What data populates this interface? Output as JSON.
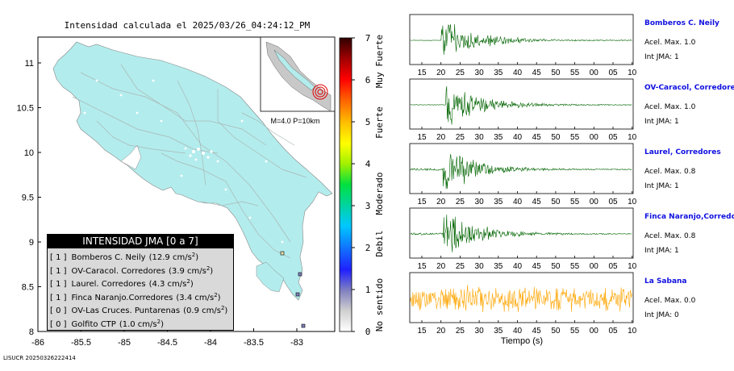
{
  "map": {
    "title": "Intensidad calculada el 2025/03/26_04:24:12_PM",
    "x_ticks": [
      "-86",
      "-85.5",
      "-85",
      "-84.5",
      "-84",
      "-83.5",
      "-83"
    ],
    "y_ticks": [
      "11",
      "10.5",
      "10",
      "9.5",
      "9",
      "8.5",
      "8"
    ],
    "inset_label": "M=4.0 P=10km",
    "footer": "LISUCR 20250326222414",
    "epicenter": {
      "lon": -82.72,
      "lat": 8.46
    }
  },
  "colorbar": {
    "ticks": [
      "7",
      "6",
      "5",
      "4",
      "3",
      "2",
      "1",
      "0"
    ],
    "labels": [
      "Muy Fuerte",
      "Fuerte",
      "Moderado",
      "Debil",
      "No sentido"
    ]
  },
  "legend": {
    "title": "INTENSIDAD JMA [0 a 7]",
    "rows": [
      {
        "level": "[ 1 ]",
        "name": "Bomberos C. Neily",
        "accel": "(12.9 cm/s",
        "sup": "2",
        "close": ")"
      },
      {
        "level": "[ 1 ]",
        "name": "OV-Caracol. Corredores",
        "accel": "(3.9 cm/s",
        "sup": "2",
        "close": ")"
      },
      {
        "level": "[ 1 ]",
        "name": "Laurel. Corredores",
        "accel": "(4.3 cm/s",
        "sup": "2",
        "close": ")"
      },
      {
        "level": "[ 1 ]",
        "name": "Finca Naranjo.Corredores",
        "accel": "(3.4 cm/s",
        "sup": "2",
        "close": ")"
      },
      {
        "level": "[ 0 ]",
        "name": "OV-Las Cruces. Puntarenas",
        "accel": "(0.9 cm/s",
        "sup": "2",
        "close": ")"
      },
      {
        "level": "[ 0 ]",
        "name": "Golfito CTP",
        "accel": "(1.0 cm/s",
        "sup": "2",
        "close": ")"
      }
    ]
  },
  "seismograms": {
    "xticks": [
      "15",
      "20",
      "25",
      "30",
      "35",
      "40",
      "45",
      "50",
      "55",
      "00",
      "05",
      "10"
    ],
    "xlabel": "Tiempo (s)",
    "stations": [
      {
        "name": "Bomberos C. Neily",
        "accel": "Acel. Max. 1.0",
        "int": "Int JMA: 1",
        "color": "#006400"
      },
      {
        "name": "OV-Caracol, Corredores",
        "accel": "Acel. Max. 1.0",
        "int": "Int JMA: 1",
        "color": "#006400"
      },
      {
        "name": "Laurel, Corredores",
        "accel": "Acel. Max. 0.8",
        "int": "Int JMA: 1",
        "color": "#006400"
      },
      {
        "name": "Finca Naranjo,Corredores",
        "accel": "Acel. Max. 0.8",
        "int": "Int JMA: 1",
        "color": "#006400"
      },
      {
        "name": "La Sabana",
        "accel": "Acel. Max. 0.0",
        "int": "Int JMA: 0",
        "color": "#ffa500"
      }
    ]
  }
}
